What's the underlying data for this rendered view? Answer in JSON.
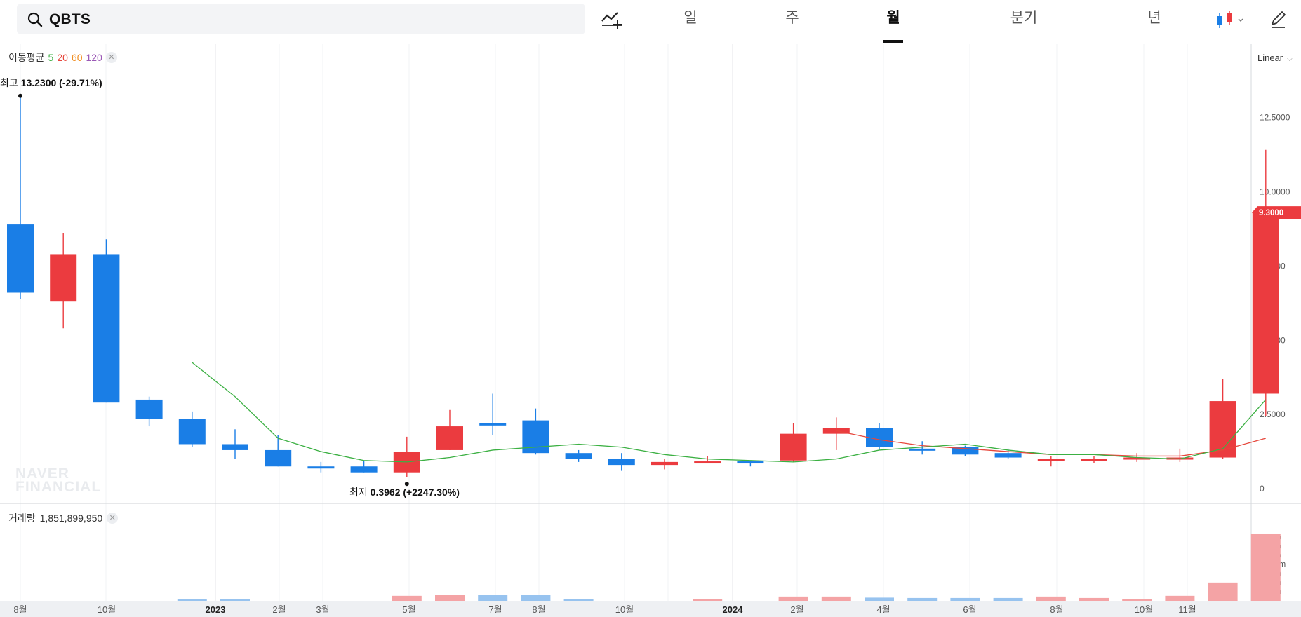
{
  "search": {
    "value": "QBTS",
    "icon": "search-icon"
  },
  "toolbar": {
    "indicator_icon": "add-indicator-icon",
    "chart_type_icon": "candlestick-icon",
    "edit_icon": "pencil-icon"
  },
  "period_tabs": [
    {
      "label": "일",
      "active": false
    },
    {
      "label": "주",
      "active": false
    },
    {
      "label": "월",
      "active": true
    },
    {
      "label": "분기",
      "active": false
    },
    {
      "label": "년",
      "active": false
    }
  ],
  "ma_legend": {
    "title": "이동평균",
    "periods": [
      "5",
      "20",
      "60",
      "120"
    ],
    "colors": [
      "#3cb043",
      "#e6473c",
      "#f08c1e",
      "#9b59b6"
    ]
  },
  "scale_selector": {
    "label": "Linear"
  },
  "watermark": {
    "line1": "NAVER",
    "line2": "FINANCIAL"
  },
  "high_marker": {
    "label": "최고",
    "value": "13.2300",
    "change": "(-29.71%)"
  },
  "low_marker": {
    "label": "최저",
    "value": "0.3962",
    "change": "(+2247.30%)"
  },
  "current_price_label": "9.3000",
  "volume_legend": {
    "title": "거래량",
    "value": "1,851,899,950"
  },
  "colors": {
    "up": "#eb3b3f",
    "down": "#1a7ee6",
    "up_volume": "#f4a3a5",
    "down_volume": "#97c3ef",
    "ma5": "#3cb043",
    "ma20": "#e6473c"
  },
  "chart_data": {
    "type": "candlestick",
    "x_tick_labels": [
      "8월",
      "10월",
      "2023",
      "2월",
      "3월",
      "5월",
      "7월",
      "8월",
      "10월",
      "2024",
      "2월",
      "4월",
      "6월",
      "8월",
      "10월",
      "11월"
    ],
    "y_tick_labels": [
      "12.5000",
      "10.0000",
      "7.5000",
      "5.0000",
      "2.5000",
      "0"
    ],
    "ylim": [
      0,
      14.2
    ],
    "volume_tick_labels": [
      "1.75b",
      "1.50b",
      "1.25b",
      "1000m",
      "750m",
      "500m",
      "250m"
    ],
    "volume_ylim": [
      0,
      1.85
    ],
    "candles": [
      {
        "open": 8.9,
        "high": 13.23,
        "low": 6.4,
        "close": 6.6,
        "volume": 0.0
      },
      {
        "open": 6.3,
        "high": 8.6,
        "low": 5.4,
        "close": 7.9,
        "volume": 0.0
      },
      {
        "open": 7.9,
        "high": 8.4,
        "low": 2.9,
        "close": 2.9,
        "volume": 0.0
      },
      {
        "open": 3.0,
        "high": 3.1,
        "low": 2.1,
        "close": 2.35,
        "volume": 0.0
      },
      {
        "open": 2.35,
        "high": 2.6,
        "low": 1.4,
        "close": 1.5,
        "volume": 0.02
      },
      {
        "open": 1.5,
        "high": 2.0,
        "low": 1.0,
        "close": 1.3,
        "volume": 0.03
      },
      {
        "open": 1.3,
        "high": 1.8,
        "low": 0.75,
        "close": 0.75,
        "volume": 0.0
      },
      {
        "open": 0.75,
        "high": 0.9,
        "low": 0.55,
        "close": 0.7,
        "volume": 0.0
      },
      {
        "open": 0.75,
        "high": 0.95,
        "low": 0.55,
        "close": 0.55,
        "volume": 0.0
      },
      {
        "open": 0.55,
        "high": 1.75,
        "low": 0.3962,
        "close": 1.25,
        "volume": 0.12
      },
      {
        "open": 1.3,
        "high": 2.65,
        "low": 1.3,
        "close": 2.1,
        "volume": 0.14
      },
      {
        "open": 2.2,
        "high": 3.2,
        "low": 1.8,
        "close": 2.15,
        "volume": 0.14
      },
      {
        "open": 2.3,
        "high": 2.7,
        "low": 1.15,
        "close": 1.2,
        "volume": 0.14
      },
      {
        "open": 1.2,
        "high": 1.3,
        "low": 0.9,
        "close": 1.0,
        "volume": 0.03
      },
      {
        "open": 1.0,
        "high": 1.2,
        "low": 0.6,
        "close": 0.8,
        "volume": 0.0
      },
      {
        "open": 0.8,
        "high": 1.0,
        "low": 0.65,
        "close": 0.9,
        "volume": 0.0
      },
      {
        "open": 0.9,
        "high": 1.1,
        "low": 0.85,
        "close": 0.92,
        "volume": 0.02
      },
      {
        "open": 0.92,
        "high": 0.95,
        "low": 0.75,
        "close": 0.88,
        "volume": 0.0
      },
      {
        "open": 0.95,
        "high": 2.2,
        "low": 0.9,
        "close": 1.85,
        "volume": 0.1
      },
      {
        "open": 1.85,
        "high": 2.4,
        "low": 1.3,
        "close": 2.05,
        "volume": 0.1
      },
      {
        "open": 2.05,
        "high": 2.2,
        "low": 1.3,
        "close": 1.4,
        "volume": 0.07
      },
      {
        "open": 1.35,
        "high": 1.6,
        "low": 1.15,
        "close": 1.3,
        "volume": 0.06
      },
      {
        "open": 1.4,
        "high": 1.45,
        "low": 1.1,
        "close": 1.15,
        "volume": 0.06
      },
      {
        "open": 1.2,
        "high": 1.35,
        "low": 1.0,
        "close": 1.05,
        "volume": 0.06
      },
      {
        "open": 1.0,
        "high": 1.1,
        "low": 0.75,
        "close": 1.0,
        "volume": 0.1
      },
      {
        "open": 1.0,
        "high": 1.1,
        "low": 0.85,
        "close": 1.0,
        "volume": 0.06
      },
      {
        "open": 1.0,
        "high": 1.2,
        "low": 0.9,
        "close": 1.05,
        "volume": 0.03
      },
      {
        "open": 1.0,
        "high": 1.35,
        "low": 0.9,
        "close": 1.05,
        "volume": 0.12
      },
      {
        "open": 1.05,
        "high": 3.7,
        "low": 1.0,
        "close": 2.95,
        "volume": 0.49
      },
      {
        "open": 3.2,
        "high": 11.41,
        "low": 2.45,
        "close": 9.3,
        "volume": 1.852
      }
    ],
    "ma5": [
      null,
      null,
      null,
      null,
      4.25,
      3.1,
      1.7,
      1.25,
      0.95,
      0.9,
      1.05,
      1.3,
      1.4,
      1.5,
      1.4,
      1.15,
      1.0,
      0.95,
      0.9,
      1.0,
      1.3,
      1.4,
      1.5,
      1.3,
      1.15,
      1.15,
      1.05,
      1.0,
      1.35,
      3.0
    ],
    "ma20": [
      null,
      null,
      null,
      null,
      null,
      null,
      null,
      null,
      null,
      null,
      null,
      null,
      null,
      null,
      null,
      null,
      null,
      null,
      null,
      1.95,
      1.65,
      1.45,
      1.35,
      1.25,
      1.15,
      1.15,
      1.1,
      1.1,
      1.3,
      1.7
    ]
  }
}
